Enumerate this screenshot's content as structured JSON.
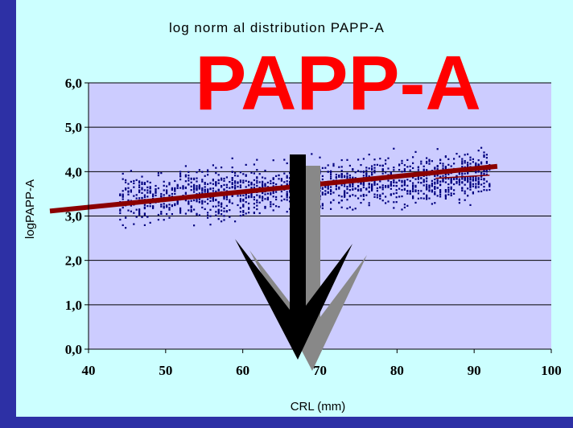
{
  "slide": {
    "background": "#2d30a5",
    "panel_background": "#ccffff",
    "overlay_title": "PAPP-A",
    "overlay_color": "#ff0000",
    "arrow": {
      "direction": "down",
      "fill": "#000000",
      "shadow": "#888888"
    }
  },
  "chart_data": {
    "type": "scatter",
    "title": "log norm al distribution PAPP-A",
    "xlabel": "CRL (mm)",
    "ylabel": "logPAPP-A",
    "xlim": [
      40,
      100
    ],
    "ylim": [
      0,
      6
    ],
    "x_ticks": [
      40,
      50,
      60,
      70,
      80,
      90,
      100
    ],
    "y_ticks": [
      0,
      1,
      2,
      3,
      4,
      5,
      6
    ],
    "x_tick_labels": [
      "40",
      "50",
      "60",
      "70",
      "80",
      "90",
      "100"
    ],
    "y_tick_labels": [
      "0,0",
      "1,0",
      "2,0",
      "3,0",
      "4,0",
      "5,0",
      "6,0"
    ],
    "plot_background": "#ccccff",
    "grid": {
      "horizontal": true,
      "vertical": false
    },
    "point_color": "#00007f",
    "trend_color": "#8b0000",
    "trend_line": {
      "x": [
        40,
        93
      ],
      "y": [
        3.22,
        4.12
      ]
    },
    "point_cloud": {
      "x_range": [
        44,
        92
      ],
      "center_at_x44": 3.35,
      "center_at_x92": 3.95,
      "spread": 0.35,
      "count": 1600
    }
  }
}
